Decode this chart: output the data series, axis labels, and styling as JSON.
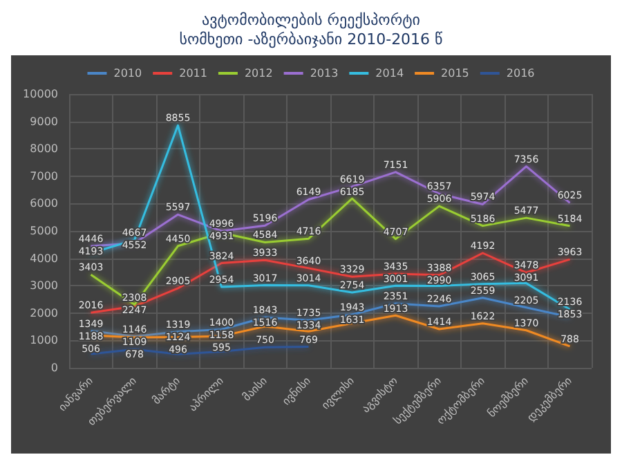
{
  "chart_data": {
    "type": "line",
    "title": "ავტომობილების რეექსპორტი",
    "subtitle": "სომხეთი -აზერბაიჯანი 2010-2016 წ",
    "categories": [
      "იანვარი",
      "თებერვალი",
      "მარტი",
      "აპრილი",
      "მაისი",
      "ივნისი",
      "ივლისი",
      "აგვისტო",
      "სექტემბერი",
      "ოქტომბერი",
      "ნოემბერი",
      "დეკემბერი"
    ],
    "series": [
      {
        "name": "2010",
        "color": "#4a86c8",
        "values": [
          1349,
          1146,
          1319,
          1400,
          1843,
          1735,
          1943,
          2351,
          2246,
          2559,
          2205,
          1853
        ]
      },
      {
        "name": "2011",
        "color": "#e8413c",
        "values": [
          2016,
          2247,
          2905,
          3824,
          3933,
          3640,
          3329,
          3435,
          3388,
          4192,
          3478,
          3963
        ]
      },
      {
        "name": "2012",
        "color": "#9acd32",
        "values": [
          3403,
          2308,
          4450,
          4931,
          4584,
          4716,
          6185,
          4707,
          5906,
          5186,
          5477,
          5184
        ]
      },
      {
        "name": "2013",
        "color": "#9b6fd1",
        "values": [
          4446,
          4552,
          5597,
          4996,
          5196,
          6149,
          6619,
          7151,
          6357,
          5974,
          7356,
          6025
        ]
      },
      {
        "name": "2014",
        "color": "#36bde0",
        "values": [
          4193,
          4667,
          8855,
          2954,
          3017,
          3014,
          2754,
          3001,
          2990,
          3065,
          3091,
          2136
        ]
      },
      {
        "name": "2015",
        "color": "#f08a24",
        "values": [
          1188,
          1109,
          1124,
          1158,
          1516,
          1334,
          1631,
          1913,
          1414,
          1622,
          1370,
          788
        ]
      },
      {
        "name": "2016",
        "color": "#2f5597",
        "values": [
          506,
          678,
          496,
          595,
          750,
          769,
          null,
          null,
          null,
          null,
          null,
          null
        ]
      }
    ],
    "ylim": [
      0,
      10000
    ],
    "yticks": [
      0,
      1000,
      2000,
      3000,
      4000,
      5000,
      6000,
      7000,
      8000,
      9000,
      10000
    ],
    "grid": true,
    "legend": "top",
    "data_labels": true,
    "marker": "none",
    "line_style": "solid"
  }
}
